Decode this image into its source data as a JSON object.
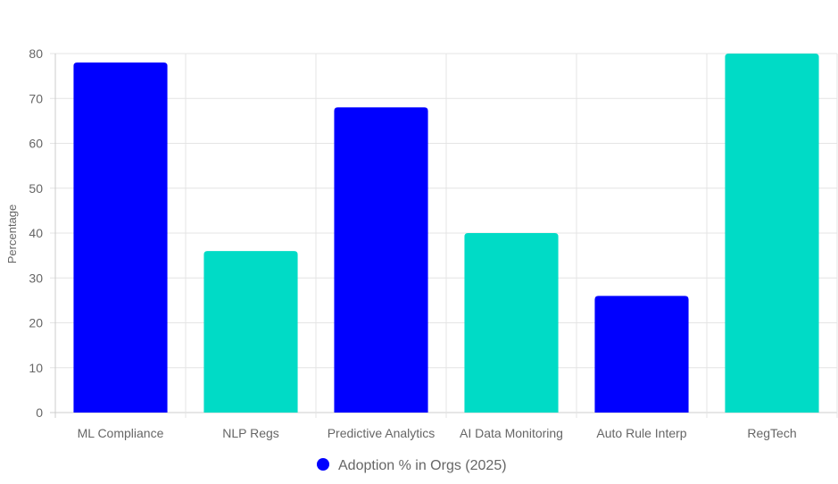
{
  "chart_data": {
    "type": "bar",
    "categories": [
      "ML Compliance",
      "NLP Regs",
      "Predictive Analytics",
      "AI Data Monitoring",
      "Auto Rule Interp",
      "RegTech"
    ],
    "series": [
      {
        "name": "Adoption % in Orgs (2025)",
        "values": [
          78,
          36,
          68,
          40,
          26,
          80
        ]
      }
    ],
    "bar_colors": [
      "#0000ff",
      "#00dbc6",
      "#0000ff",
      "#00dbc6",
      "#0000ff",
      "#00dbc6"
    ],
    "legend_color": "#0000ff",
    "xlabel": "",
    "ylabel": "Percentage",
    "ylim": [
      0,
      80
    ],
    "yticks": [
      0,
      10,
      20,
      30,
      40,
      50,
      60,
      70,
      80
    ],
    "grid": true,
    "legend_position": "bottom"
  }
}
